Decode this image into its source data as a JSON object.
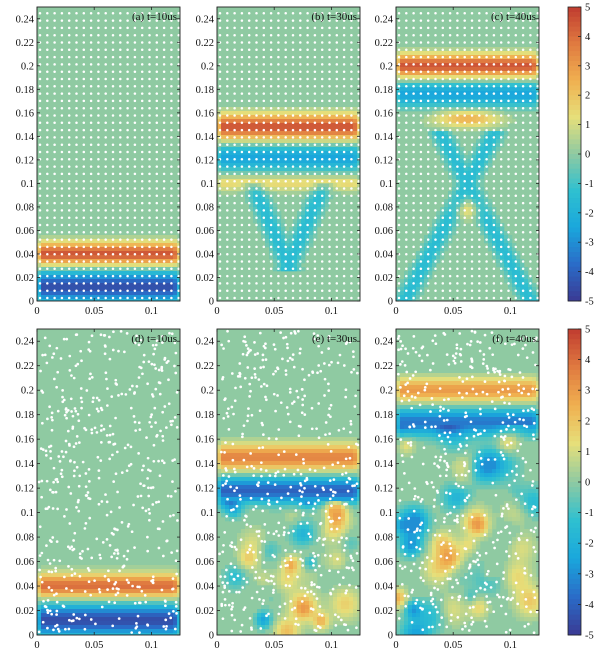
{
  "colors": {
    "background": "#8fcaa2",
    "node": "#ffffff",
    "colormap": [
      "#3a3a93",
      "#2a6cc8",
      "#1aa7dc",
      "#2fc0d0",
      "#8fcaa2",
      "#e6df7a",
      "#f0b050",
      "#e07a40",
      "#c03c30"
    ]
  },
  "chart_data": [
    {
      "type": "heatmap",
      "id": "a",
      "title": "(a) t=10us",
      "time_us": 10,
      "node_layout": "regular",
      "xlim": [
        0,
        0.125
      ],
      "ylim": [
        0,
        0.25
      ],
      "x_ticks": [
        "0",
        "0.05",
        "0.1"
      ],
      "y_ticks": [
        "0",
        "0.02",
        "0.04",
        "0.06",
        "0.08",
        "0.1",
        "0.12",
        "0.14",
        "0.16",
        "0.18",
        "0.2",
        "0.22",
        "0.24"
      ],
      "features": [
        {
          "kind": "band",
          "y_center": 0.04,
          "half_width": 0.009,
          "value": 4.5
        },
        {
          "kind": "band",
          "y_center": 0.012,
          "half_width": 0.012,
          "value": -4.5
        }
      ]
    },
    {
      "type": "heatmap",
      "id": "b",
      "title": "(b) t=30us",
      "time_us": 30,
      "node_layout": "regular",
      "xlim": [
        0,
        0.125
      ],
      "ylim": [
        0,
        0.25
      ],
      "x_ticks": [
        "0",
        "0.05",
        "0.1"
      ],
      "y_ticks": [
        "0",
        "0.02",
        "0.04",
        "0.06",
        "0.08",
        "0.1",
        "0.12",
        "0.14",
        "0.16",
        "0.18",
        "0.2",
        "0.22",
        "0.24"
      ],
      "features": [
        {
          "kind": "band",
          "y_center": 0.148,
          "half_width": 0.01,
          "value": 4.5
        },
        {
          "kind": "band",
          "y_center": 0.122,
          "half_width": 0.01,
          "value": -2.5
        },
        {
          "kind": "band",
          "y_center": 0.1,
          "half_width": 0.006,
          "value": 1.5
        },
        {
          "kind": "v-shape",
          "apex_y": 0.03,
          "top_y": 0.1,
          "value": -1.5
        }
      ]
    },
    {
      "type": "heatmap",
      "id": "c",
      "title": "(c) t=40us",
      "time_us": 40,
      "node_layout": "regular",
      "xlim": [
        0,
        0.125
      ],
      "ylim": [
        0,
        0.25
      ],
      "x_ticks": [
        "0",
        "0.05",
        "0.1"
      ],
      "y_ticks": [
        "0",
        "0.02",
        "0.04",
        "0.06",
        "0.08",
        "0.1",
        "0.12",
        "0.14",
        "0.16",
        "0.18",
        "0.2",
        "0.22",
        "0.24"
      ],
      "features": [
        {
          "kind": "band",
          "y_center": 0.2,
          "half_width": 0.009,
          "value": 4.5
        },
        {
          "kind": "band",
          "y_center": 0.176,
          "half_width": 0.01,
          "value": -2.5
        },
        {
          "kind": "blob",
          "y_center": 0.155,
          "value": 2.5
        },
        {
          "kind": "x-shape",
          "center_y": 0.1,
          "value": -1.5
        }
      ]
    },
    {
      "type": "heatmap",
      "id": "d",
      "title": "(d) t=10us",
      "time_us": 10,
      "node_layout": "random",
      "xlim": [
        0,
        0.125
      ],
      "ylim": [
        0,
        0.25
      ],
      "x_ticks": [
        "0",
        "0.05",
        "0.1"
      ],
      "y_ticks": [
        "0",
        "0.02",
        "0.04",
        "0.06",
        "0.08",
        "0.1",
        "0.12",
        "0.14",
        "0.16",
        "0.18",
        "0.2",
        "0.22",
        "0.24"
      ],
      "features": [
        {
          "kind": "band",
          "y_center": 0.04,
          "half_width": 0.009,
          "value": 4
        },
        {
          "kind": "band",
          "y_center": 0.012,
          "half_width": 0.012,
          "value": -4.5
        }
      ]
    },
    {
      "type": "heatmap",
      "id": "e",
      "title": "(e) t=30us",
      "time_us": 30,
      "node_layout": "random",
      "xlim": [
        0,
        0.125
      ],
      "ylim": [
        0,
        0.25
      ],
      "x_ticks": [
        "0",
        "0.05",
        "0.1"
      ],
      "y_ticks": [
        "0",
        "0.02",
        "0.04",
        "0.06",
        "0.08",
        "0.1",
        "0.12",
        "0.14",
        "0.16",
        "0.18",
        "0.2",
        "0.22",
        "0.24"
      ],
      "features": [
        {
          "kind": "band",
          "y_center": 0.145,
          "half_width": 0.01,
          "value": 3.5
        },
        {
          "kind": "band",
          "y_center": 0.118,
          "half_width": 0.01,
          "value": -4
        },
        {
          "kind": "noise",
          "y_range": [
            0,
            0.1
          ],
          "amplitude": 2.5
        }
      ]
    },
    {
      "type": "heatmap",
      "id": "f",
      "title": "(f) t=40us",
      "time_us": 40,
      "node_layout": "random",
      "xlim": [
        0,
        0.125
      ],
      "ylim": [
        0,
        0.25
      ],
      "x_ticks": [
        "0",
        "0.05",
        "0.1"
      ],
      "y_ticks": [
        "0",
        "0.02",
        "0.04",
        "0.06",
        "0.08",
        "0.1",
        "0.12",
        "0.14",
        "0.16",
        "0.18",
        "0.2",
        "0.22",
        "0.24"
      ],
      "features": [
        {
          "kind": "band",
          "y_center": 0.2,
          "half_width": 0.009,
          "value": 3
        },
        {
          "kind": "band",
          "y_center": 0.174,
          "half_width": 0.01,
          "value": -3.5
        },
        {
          "kind": "noise",
          "y_range": [
            0,
            0.16
          ],
          "amplitude": 2.5
        }
      ]
    }
  ],
  "colorbars": [
    {
      "id": "top",
      "min": -5,
      "max": 5,
      "ticks": [
        "5",
        "4",
        "3",
        "2",
        "1",
        "0",
        "-1",
        "-2",
        "-3",
        "-4",
        "-5"
      ]
    },
    {
      "id": "bottom",
      "min": -5,
      "max": 5,
      "ticks": [
        "5",
        "4",
        "3",
        "2",
        "1",
        "0",
        "-1",
        "-2",
        "-3",
        "-4",
        "-5"
      ]
    }
  ]
}
